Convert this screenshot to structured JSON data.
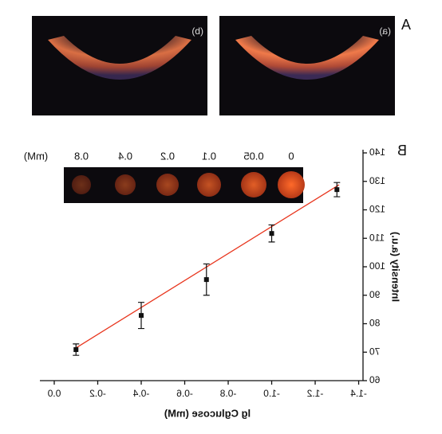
{
  "chart_data": {
    "type": "scatter",
    "panel_labels": [
      "A",
      "B"
    ],
    "photos": [
      {
        "label": "(a)"
      },
      {
        "label": "(b)"
      }
    ],
    "inset": {
      "labels": [
        "0",
        "0.05",
        "0.1",
        "0.2",
        "0.4",
        "0.8"
      ],
      "unit": "(mM)"
    },
    "x_label": "lg Cglucose (mM)",
    "y_label": "Intensity (a.u.)",
    "x": [
      -0.1,
      -0.4,
      -0.7,
      -1.0,
      -1.3
    ],
    "series": [
      {
        "color": "#111111",
        "values": [
          70.9,
          82.9,
          95.5,
          111.7,
          127.1
        ],
        "errors": [
          2,
          4.6,
          5.5,
          3,
          2.5
        ]
      }
    ],
    "fit": {
      "color": "#e8341c",
      "x": [
        -0.1,
        -1.31
      ],
      "y": [
        71.5,
        128.8
      ]
    },
    "xlim": [
      -1.42,
      0.066
    ],
    "ylim": [
      60,
      140
    ],
    "xticks": [
      -1.4,
      -1.2,
      {
        "value": -1.0,
        "label": "-1.0"
      },
      -0.8,
      -0.6,
      -0.4,
      -0.2,
      {
        "value": 0,
        "label": "0.0"
      }
    ],
    "yticks": [
      60,
      70,
      80,
      90,
      100,
      110,
      120,
      130,
      140
    ]
  }
}
